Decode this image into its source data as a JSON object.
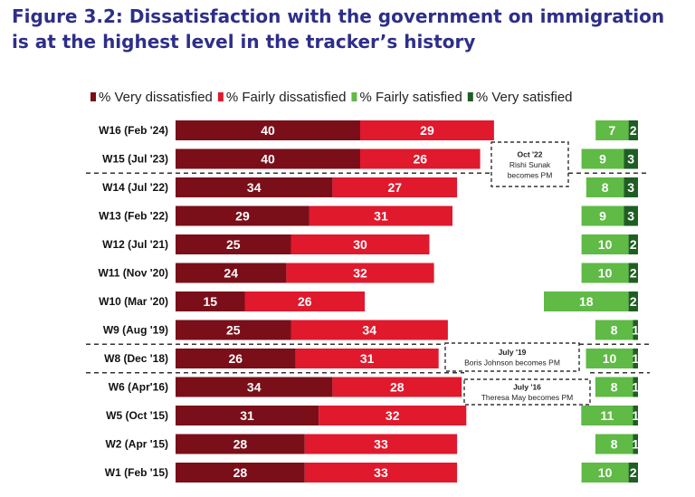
{
  "figure": {
    "title": "Figure 3.2: Dissatisfaction with the government on immigration is at the highest level in the tracker’s history"
  },
  "chart_data": {
    "type": "bar",
    "orientation": "horizontal",
    "stacked": "diverging",
    "categories": [
      "W16 (Feb '24)",
      "W15 (Jul '23)",
      "W14 (Jul '22)",
      "W13 (Feb '22)",
      "W12 (Jul '21)",
      "W11 (Nov '20)",
      "W10 (Mar '20)",
      "W9 (Aug '19)",
      "W8 (Dec '18)",
      "W6 (Apr'16)",
      "W5 (Oct '15)",
      "W2 (Apr '15)",
      "W1 (Feb '15)"
    ],
    "series": [
      {
        "name": "% Very dissatisfied",
        "color": "#7a0f1a",
        "side": "left",
        "values": [
          40,
          40,
          34,
          29,
          25,
          24,
          15,
          25,
          26,
          34,
          31,
          28,
          28
        ]
      },
      {
        "name": "% Fairly dissatisfied",
        "color": "#e0192d",
        "side": "left",
        "values": [
          29,
          26,
          27,
          31,
          30,
          32,
          26,
          34,
          31,
          28,
          32,
          33,
          33
        ]
      },
      {
        "name": "% Fairly satisfied",
        "color": "#5fba46",
        "side": "right",
        "values": [
          7,
          9,
          8,
          9,
          10,
          10,
          18,
          8,
          10,
          8,
          11,
          8,
          10
        ]
      },
      {
        "name": "% Very satisfied",
        "color": "#1f5e23",
        "side": "right",
        "values": [
          2,
          3,
          3,
          3,
          2,
          2,
          2,
          1,
          1,
          1,
          1,
          1,
          2
        ]
      }
    ],
    "legend": "top",
    "annotations": [
      {
        "lines": [
          "Oct '22",
          "Rishi Sunak",
          "becomes PM"
        ],
        "between": [
          "W15 (Jul '23)",
          "W14 (Jul '22)"
        ]
      },
      {
        "lines": [
          "July '19",
          "Boris Johnson becomes PM"
        ],
        "between": [
          "W9 (Aug '19)",
          "W8 (Dec '18)"
        ]
      },
      {
        "lines": [
          "July '16",
          "Theresa May becomes PM"
        ],
        "between": [
          "W8 (Dec '18)",
          "W6 (Apr'16)"
        ]
      }
    ]
  }
}
